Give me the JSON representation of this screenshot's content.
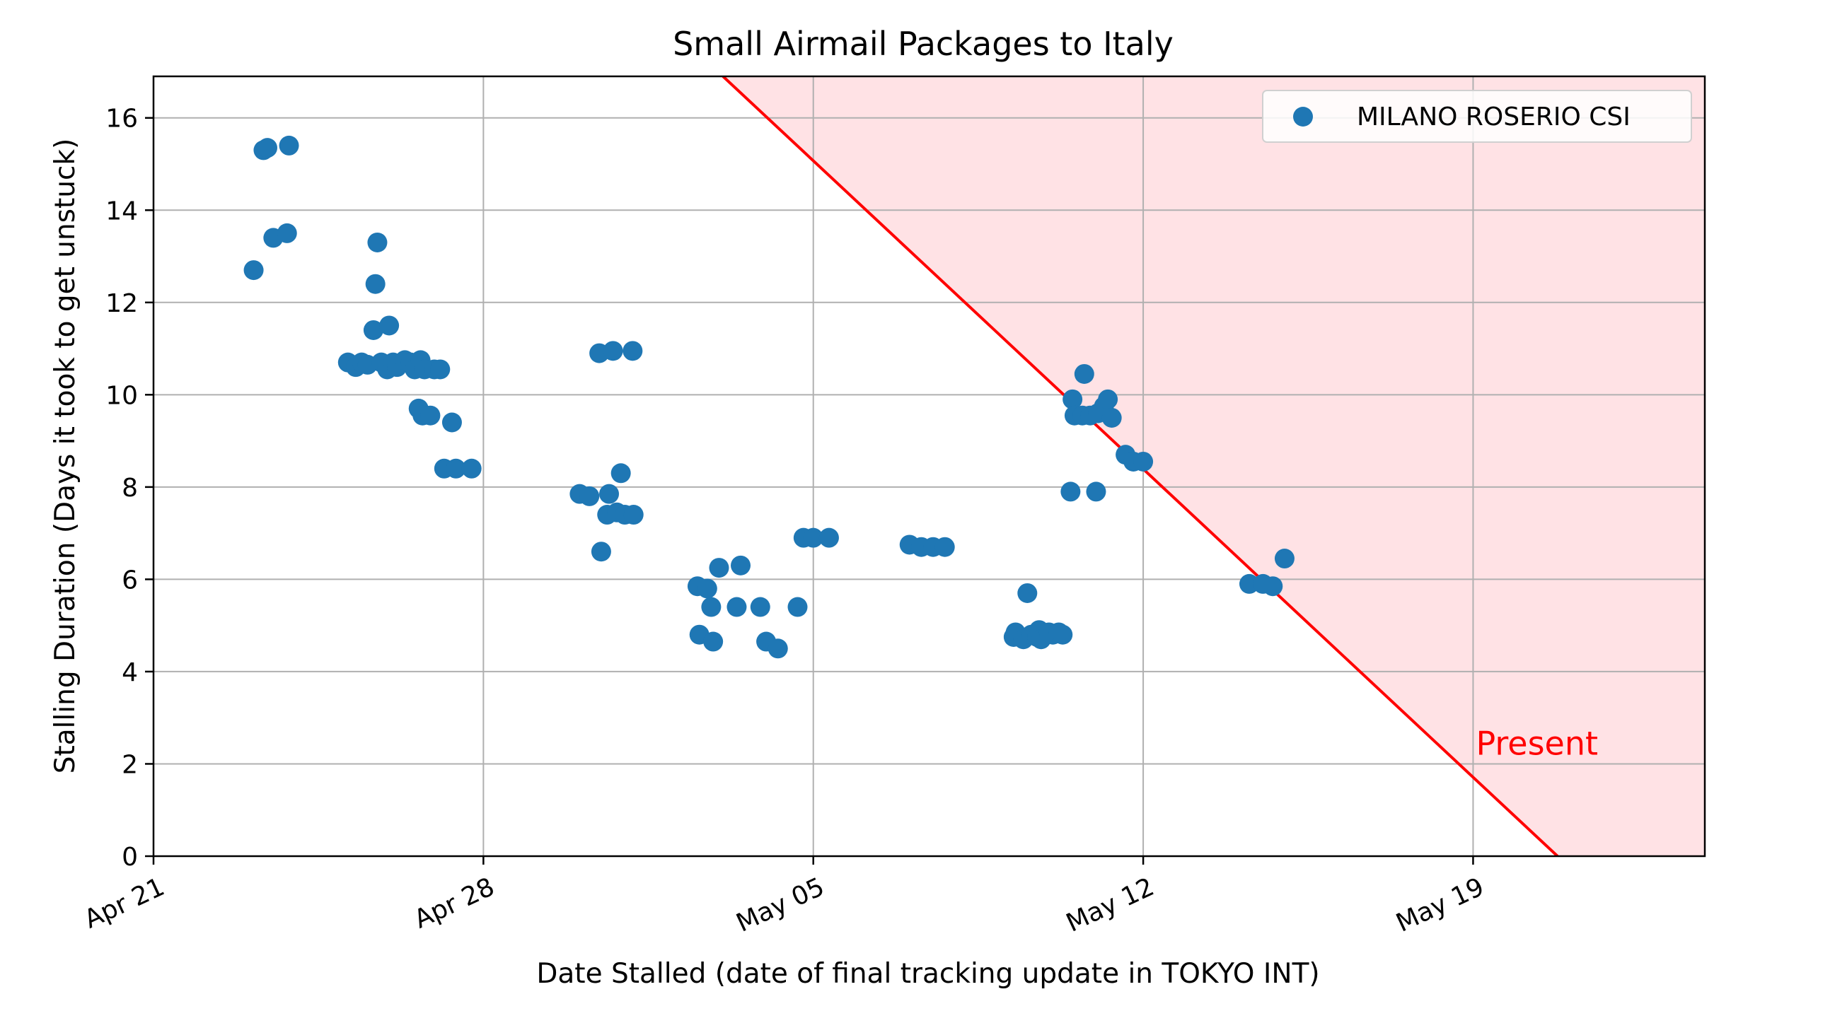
{
  "chart_data": {
    "type": "scatter",
    "title": "Small Airmail Packages to Italy",
    "xlabel": "Date Stalled (date of final tracking update in TOKYO INT)",
    "ylabel": "Stalling Duration (Days it took to get unstuck)",
    "x_type": "date",
    "xlim": [
      "2026-04-21",
      "2026-05-23 22:00"
    ],
    "ylim": [
      0,
      16.9
    ],
    "x_ticks": [
      "2026-04-21",
      "2026-04-28",
      "2026-05-05",
      "2026-05-12",
      "2026-05-19"
    ],
    "x_tick_labels": [
      "Apr 21",
      "Apr 28",
      "May 05",
      "May 12",
      "May 19"
    ],
    "y_ticks": [
      0,
      2,
      4,
      6,
      8,
      10,
      12,
      14,
      16
    ],
    "y_tick_labels": [
      "0",
      "2",
      "4",
      "6",
      "8",
      "10",
      "12",
      "14",
      "16"
    ],
    "grid": true,
    "legend_position": "top-right",
    "colors": {
      "series": "#1f77b4",
      "present_line": "#ff0000",
      "present_fill": "#ffe2e5",
      "grid": "#b0b0b0"
    },
    "series": [
      {
        "name": "MILANO ROSERIO CSI",
        "points": [
          [
            "2026-04-23 03:00",
            12.7
          ],
          [
            "2026-04-23 08:00",
            15.3
          ],
          [
            "2026-04-23 10:00",
            15.35
          ],
          [
            "2026-04-23 13:00",
            13.4
          ],
          [
            "2026-04-23 20:00",
            13.5
          ],
          [
            "2026-04-23 21:00",
            15.4
          ],
          [
            "2026-04-25 03:00",
            10.7
          ],
          [
            "2026-04-25 07:00",
            10.6
          ],
          [
            "2026-04-25 10:00",
            10.7
          ],
          [
            "2026-04-25 13:00",
            10.65
          ],
          [
            "2026-04-25 16:00",
            11.4
          ],
          [
            "2026-04-25 17:00",
            12.4
          ],
          [
            "2026-04-25 18:00",
            13.3
          ],
          [
            "2026-04-25 20:00",
            10.7
          ],
          [
            "2026-04-25 23:00",
            10.55
          ],
          [
            "2026-04-26 00:00",
            11.5
          ],
          [
            "2026-04-26 02:00",
            10.7
          ],
          [
            "2026-04-26 04:00",
            10.6
          ],
          [
            "2026-04-26 08:00",
            10.75
          ],
          [
            "2026-04-26 11:00",
            10.7
          ],
          [
            "2026-04-26 13:00",
            10.55
          ],
          [
            "2026-04-26 16:00",
            10.75
          ],
          [
            "2026-04-26 15:00",
            9.7
          ],
          [
            "2026-04-26 17:00",
            9.55
          ],
          [
            "2026-04-26 18:00",
            10.55
          ],
          [
            "2026-04-26 21:00",
            9.55
          ],
          [
            "2026-04-26 23:00",
            10.55
          ],
          [
            "2026-04-27 02:00",
            10.55
          ],
          [
            "2026-04-27 04:00",
            8.4
          ],
          [
            "2026-04-27 08:00",
            9.4
          ],
          [
            "2026-04-27 10:00",
            8.4
          ],
          [
            "2026-04-27 18:00",
            8.4
          ],
          [
            "2026-04-30 01:00",
            7.85
          ],
          [
            "2026-04-30 06:00",
            7.8
          ],
          [
            "2026-04-30 11:00",
            10.9
          ],
          [
            "2026-04-30 12:00",
            6.6
          ],
          [
            "2026-04-30 16:00",
            7.85
          ],
          [
            "2026-04-30 18:00",
            10.95
          ],
          [
            "2026-04-30 15:00",
            7.4
          ],
          [
            "2026-04-30 20:00",
            7.45
          ],
          [
            "2026-04-30 22:00",
            8.3
          ],
          [
            "2026-05-01 00:00",
            7.4
          ],
          [
            "2026-05-01 04:00",
            10.95
          ],
          [
            "2026-05-01 04:30",
            7.4
          ],
          [
            "2026-05-02 13:00",
            5.85
          ],
          [
            "2026-05-02 14:00",
            4.8
          ],
          [
            "2026-05-02 18:00",
            5.8
          ],
          [
            "2026-05-02 20:00",
            5.4
          ],
          [
            "2026-05-02 21:00",
            4.65
          ],
          [
            "2026-05-03 00:00",
            6.25
          ],
          [
            "2026-05-03 09:00",
            5.4
          ],
          [
            "2026-05-03 11:00",
            6.3
          ],
          [
            "2026-05-03 21:00",
            5.4
          ],
          [
            "2026-05-04 00:00",
            4.65
          ],
          [
            "2026-05-04 06:00",
            4.5
          ],
          [
            "2026-05-04 16:00",
            5.4
          ],
          [
            "2026-05-04 19:00",
            6.9
          ],
          [
            "2026-05-05 00:00",
            6.9
          ],
          [
            "2026-05-05 08:00",
            6.9
          ],
          [
            "2026-05-07 01:00",
            6.75
          ],
          [
            "2026-05-07 07:00",
            6.7
          ],
          [
            "2026-05-07 13:00",
            6.7
          ],
          [
            "2026-05-07 19:00",
            6.7
          ],
          [
            "2026-05-09 06:00",
            4.75
          ],
          [
            "2026-05-09 07:00",
            4.85
          ],
          [
            "2026-05-09 11:00",
            4.7
          ],
          [
            "2026-05-09 13:00",
            5.7
          ],
          [
            "2026-05-09 15:00",
            4.8
          ],
          [
            "2026-05-09 18:00",
            4.75
          ],
          [
            "2026-05-09 19:00",
            4.9
          ],
          [
            "2026-05-09 20:00",
            4.7
          ],
          [
            "2026-05-10 00:00",
            4.85
          ],
          [
            "2026-05-10 02:00",
            4.8
          ],
          [
            "2026-05-10 05:00",
            4.85
          ],
          [
            "2026-05-10 07:00",
            4.8
          ],
          [
            "2026-05-10 11:00",
            7.9
          ],
          [
            "2026-05-10 12:00",
            9.9
          ],
          [
            "2026-05-10 13:00",
            9.55
          ],
          [
            "2026-05-10 17:00",
            9.55
          ],
          [
            "2026-05-10 18:00",
            10.45
          ],
          [
            "2026-05-10 21:00",
            9.55
          ],
          [
            "2026-05-11 00:00",
            7.9
          ],
          [
            "2026-05-11 01:00",
            9.6
          ],
          [
            "2026-05-11 04:00",
            9.75
          ],
          [
            "2026-05-11 06:00",
            9.9
          ],
          [
            "2026-05-11 08:00",
            9.5
          ],
          [
            "2026-05-11 15:00",
            8.7
          ],
          [
            "2026-05-11 19:00",
            8.55
          ],
          [
            "2026-05-12 00:00",
            8.55
          ],
          [
            "2026-05-14 06:00",
            5.9
          ],
          [
            "2026-05-14 13:00",
            5.9
          ],
          [
            "2026-05-14 18:00",
            5.85
          ],
          [
            "2026-05-15 00:00",
            6.45
          ]
        ]
      }
    ],
    "annotations": [
      {
        "text": "Present",
        "type": "line",
        "from": [
          "2026-05-03 02:00",
          16.9
        ],
        "to": [
          "2026-05-20 19:00",
          0
        ],
        "label_at": [
          "2026-05-19",
          2.2
        ],
        "shade_right": true
      }
    ]
  }
}
